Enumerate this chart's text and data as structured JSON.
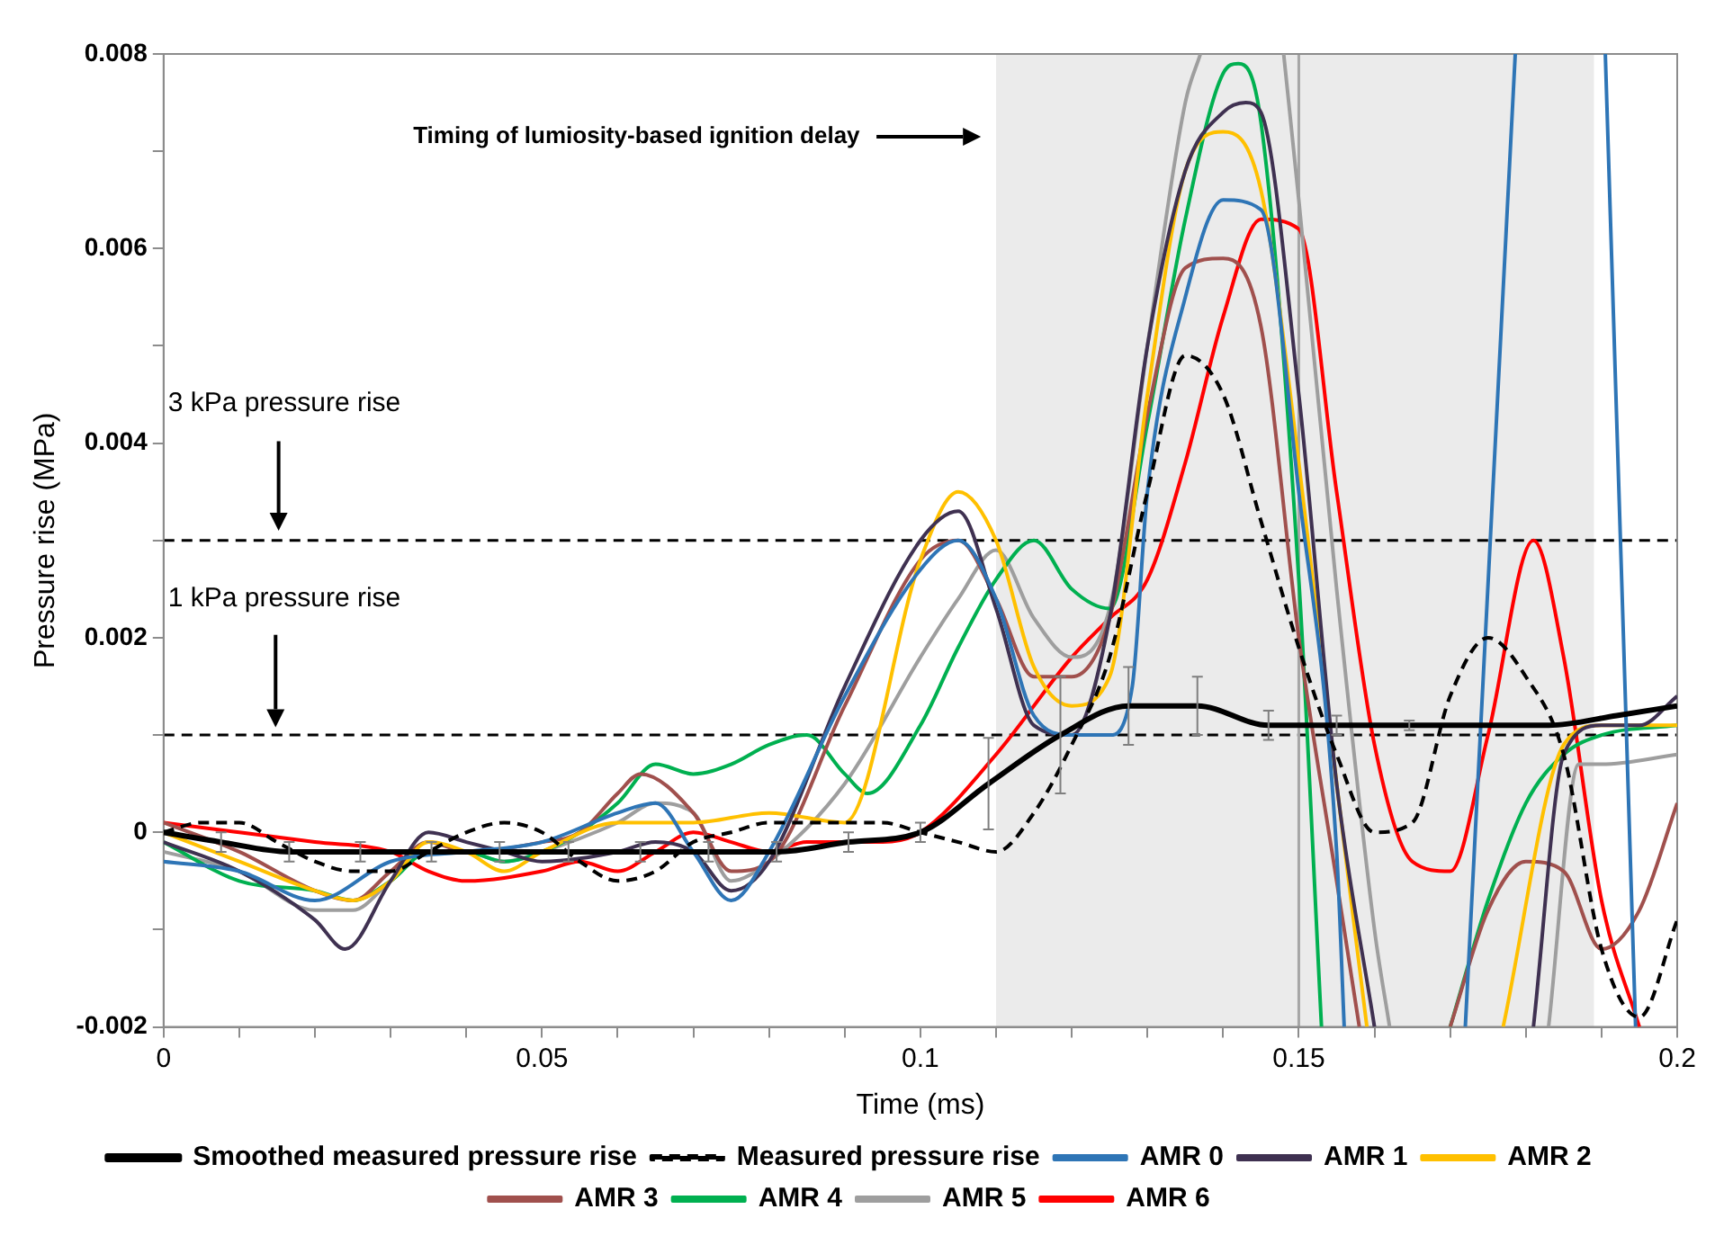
{
  "chart_data": {
    "type": "line",
    "xlabel": "Time (ms)",
    "ylabel": "Pressure rise (MPa)",
    "xlim": [
      0,
      0.2
    ],
    "ylim": [
      -0.002,
      0.008
    ],
    "xticks": [
      0,
      {
        "value": 0.01,
        "label": null
      },
      {
        "value": 0.02,
        "label": null
      },
      {
        "value": 0.03,
        "label": null
      },
      {
        "value": 0.04,
        "label": null
      },
      0.05,
      {
        "value": 0.06,
        "label": null
      },
      {
        "value": 0.07,
        "label": null
      },
      {
        "value": 0.08,
        "label": null
      },
      {
        "value": 0.09,
        "label": null
      },
      0.1,
      {
        "value": 0.11,
        "label": null
      },
      {
        "value": 0.12,
        "label": null
      },
      {
        "value": 0.13,
        "label": null
      },
      {
        "value": 0.14,
        "label": null
      },
      0.15,
      {
        "value": 0.16,
        "label": null
      },
      {
        "value": 0.17,
        "label": null
      },
      {
        "value": 0.18,
        "label": null
      },
      {
        "value": 0.19,
        "label": null
      },
      0.2
    ],
    "yticks": [
      -0.002,
      {
        "value": -0.001,
        "label": null
      },
      0,
      {
        "value": 0.001,
        "label": null
      },
      0.002,
      {
        "value": 0.003,
        "label": null
      },
      0.004,
      {
        "value": 0.005,
        "label": null
      },
      0.006,
      {
        "value": 0.007,
        "label": null
      },
      0.008
    ],
    "grid": false,
    "legend": "bottom",
    "marker": "none",
    "series": [
      {
        "name": "Smoothed measured pressure rise",
        "color": "#000000",
        "x": [
          0,
          0.0076,
          0.0166,
          0.026,
          0.0354,
          0.0444,
          0.0535,
          0.063,
          0.072,
          0.081,
          0.0905,
          0.1,
          0.109,
          0.1185,
          0.1275,
          0.1366,
          0.146,
          0.155,
          0.1646,
          0.174,
          0.183,
          0.192,
          0.2
        ],
        "values": [
          0,
          -0.0001,
          -0.0002,
          -0.0002,
          -0.0002,
          -0.0002,
          -0.0002,
          -0.0002,
          -0.0002,
          -0.0002,
          -0.0001,
          0,
          0.0005,
          0.001,
          0.0013,
          0.0013,
          0.0011,
          0.0011,
          0.0011,
          0.0011,
          0.0011,
          0.0012,
          0.0013
        ],
        "errors": [
          null,
          0.0001,
          0.0001,
          0.0001,
          0.0001,
          0.0001,
          0.0001,
          0.0001,
          0.0001,
          0.0001,
          0.0001,
          0.0001,
          0.00047,
          0.0006,
          0.0004,
          0.0003,
          0.00015,
          0.0001,
          5e-05,
          null,
          null,
          null,
          null
        ]
      },
      {
        "name": "Measured pressure rise",
        "color": "#000000",
        "line_style": "dashed",
        "x": [
          0,
          0.005,
          0.01,
          0.015,
          0.02,
          0.025,
          0.03,
          0.035,
          0.04,
          0.045,
          0.05,
          0.055,
          0.06,
          0.065,
          0.07,
          0.075,
          0.08,
          0.085,
          0.09,
          0.095,
          0.1,
          0.105,
          0.11,
          0.115,
          0.12,
          0.125,
          0.13,
          0.135,
          0.14,
          0.145,
          0.15,
          0.155,
          0.16,
          0.165,
          0.17,
          0.175,
          0.18,
          0.185,
          0.19,
          0.195,
          0.2
        ],
        "values": [
          0,
          0.0001,
          0.0001,
          -0.0001,
          -0.0003,
          -0.0004,
          -0.0004,
          -0.0002,
          0,
          0.0001,
          0,
          -0.0003,
          -0.0005,
          -0.0004,
          -0.0001,
          0,
          0.0001,
          0.0001,
          0.0001,
          0.0001,
          0,
          -0.0001,
          -0.0002,
          0.0002,
          0.0009,
          0.0018,
          0.0035,
          0.0049,
          0.0045,
          0.0032,
          0.0019,
          0.0008,
          0,
          0.0001,
          0.0014,
          0.002,
          0.0016,
          0.0008,
          -0.0012,
          -0.0019,
          -0.0009
        ]
      },
      {
        "name": "AMR 0",
        "color": "#2e75b6",
        "x": [
          0,
          0.01,
          0.02,
          0.03,
          0.04,
          0.05,
          0.06,
          0.065,
          0.07,
          0.075,
          0.08,
          0.09,
          0.1,
          0.105,
          0.11,
          0.115,
          0.12,
          0.125,
          0.128,
          0.13,
          0.135,
          0.14,
          0.145,
          0.15,
          0.155,
          0.156,
          0.163,
          0.172,
          0.1786,
          0.185,
          0.1905,
          0.1945
        ],
        "values": [
          -0.0003,
          -0.0004,
          -0.0007,
          -0.0003,
          -0.0002,
          -0.0001,
          0.0002,
          0.0003,
          -0.0002,
          -0.0007,
          -0.0002,
          0.0014,
          0.0027,
          0.003,
          0.0024,
          0.0012,
          0.001,
          0.001,
          0.0015,
          0.0035,
          0.0055,
          0.0065,
          0.0064,
          0.0035,
          -0.0002,
          -0.002,
          null,
          -0.002,
          0.008,
          null,
          0.008,
          -0.002
        ]
      },
      {
        "name": "AMR 1",
        "color": "#3f3151",
        "x": [
          0,
          0.01,
          0.02,
          0.024,
          0.03,
          0.035,
          0.04,
          0.045,
          0.05,
          0.06,
          0.065,
          0.07,
          0.075,
          0.08,
          0.09,
          0.1,
          0.105,
          0.11,
          0.115,
          0.12,
          0.125,
          0.13,
          0.135,
          0.14,
          0.143,
          0.145,
          0.15,
          0.155,
          0.16,
          0.17,
          0.181,
          0.185,
          0.19,
          0.195,
          0.2
        ],
        "values": [
          -0.0001,
          -0.0004,
          -0.0009,
          -0.0012,
          -0.0005,
          0,
          -0.0001,
          -0.0002,
          -0.0003,
          -0.0002,
          -0.0001,
          -0.0002,
          -0.0006,
          -0.0003,
          0.0015,
          0.003,
          0.0033,
          0.0023,
          0.0011,
          0.001,
          0.0022,
          0.005,
          0.0068,
          0.0074,
          0.0075,
          0.0074,
          0.0045,
          0.0005,
          -0.002,
          null,
          -0.002,
          0.0008,
          0.0011,
          0.0011,
          0.0014
        ]
      },
      {
        "name": "AMR 2",
        "color": "#ffc000",
        "x": [
          0,
          0.01,
          0.02,
          0.025,
          0.03,
          0.035,
          0.04,
          0.045,
          0.05,
          0.06,
          0.07,
          0.08,
          0.09,
          0.1,
          0.105,
          0.11,
          0.115,
          0.12,
          0.125,
          0.13,
          0.135,
          0.14,
          0.145,
          0.15,
          0.155,
          0.159,
          0.168,
          0.177,
          0.185,
          0.19,
          0.2
        ],
        "values": [
          0,
          -0.0003,
          -0.0006,
          -0.0007,
          -0.0005,
          -0.0001,
          -0.0002,
          -0.0004,
          -0.0002,
          0.0001,
          0.0001,
          0.0002,
          0.0001,
          0.0028,
          0.0035,
          0.003,
          0.0017,
          0.0013,
          0.0016,
          0.0045,
          0.0068,
          0.0072,
          0.0066,
          0.0038,
          0.0005,
          -0.002,
          null,
          -0.002,
          0.0009,
          0.0011,
          0.0011
        ]
      },
      {
        "name": "AMR 3",
        "color": "#a0504d",
        "x": [
          0,
          0.01,
          0.02,
          0.025,
          0.03,
          0.035,
          0.04,
          0.05,
          0.055,
          0.06,
          0.063,
          0.07,
          0.075,
          0.08,
          0.09,
          0.1,
          0.105,
          0.11,
          0.115,
          0.12,
          0.125,
          0.13,
          0.135,
          0.14,
          0.145,
          0.15,
          0.155,
          0.158,
          0.164,
          0.17,
          0.175,
          0.18,
          0.185,
          0.19,
          0.195,
          0.2
        ],
        "values": [
          0.0001,
          -0.0002,
          -0.0006,
          -0.0007,
          -0.0004,
          -0.0001,
          -0.0002,
          -0.0001,
          0,
          0.0004,
          0.0006,
          0.0002,
          -0.0004,
          -0.0003,
          0.0013,
          0.0028,
          0.003,
          0.0024,
          0.0016,
          0.0016,
          0.0022,
          0.0043,
          0.0058,
          0.0059,
          0.0052,
          0.002,
          -0.0005,
          -0.002,
          null,
          -0.002,
          -0.0008,
          -0.0003,
          -0.0004,
          -0.0012,
          -0.0008,
          0.0003
        ]
      },
      {
        "name": "AMR 4",
        "color": "#00b050",
        "x": [
          0,
          0.01,
          0.02,
          0.025,
          0.03,
          0.035,
          0.04,
          0.045,
          0.05,
          0.055,
          0.06,
          0.065,
          0.07,
          0.075,
          0.08,
          0.085,
          0.09,
          0.093,
          0.1,
          0.105,
          0.11,
          0.115,
          0.12,
          0.125,
          0.13,
          0.135,
          0.14,
          0.142,
          0.145,
          0.15,
          0.153,
          0.16,
          0.17,
          0.175,
          0.18,
          0.185,
          0.19,
          0.2
        ],
        "values": [
          -0.0001,
          -0.0005,
          -0.0006,
          -0.0007,
          -0.0005,
          -0.0002,
          -0.0002,
          -0.0003,
          -0.0002,
          0,
          0.0003,
          0.0007,
          0.0006,
          0.0007,
          0.0009,
          0.001,
          0.0006,
          0.0004,
          0.0011,
          0.0019,
          0.0026,
          0.003,
          0.0025,
          0.0023,
          0.0042,
          0.0063,
          0.0078,
          0.0079,
          0.0073,
          0.0026,
          -0.002,
          null,
          -0.002,
          -0.0007,
          0.0003,
          0.0008,
          0.001,
          0.0011
        ]
      },
      {
        "name": "AMR 5",
        "color": "#9e9e9e",
        "x": [
          0,
          0.01,
          0.02,
          0.025,
          0.03,
          0.035,
          0.04,
          0.045,
          0.05,
          0.06,
          0.065,
          0.07,
          0.075,
          0.08,
          0.09,
          0.1,
          0.105,
          0.11,
          0.115,
          0.12,
          0.125,
          0.13,
          0.135,
          0.137,
          0.142,
          0.148,
          0.15,
          0.155,
          0.16,
          0.162,
          0.172,
          0.183,
          0.187,
          0.19,
          0.2
        ],
        "values": [
          -0.0002,
          -0.0004,
          -0.0008,
          -0.0008,
          -0.0005,
          -0.0002,
          -0.0002,
          -0.0003,
          -0.0002,
          0.0001,
          0.0003,
          0.0002,
          -0.0005,
          -0.0003,
          0.0005,
          0.0018,
          0.0024,
          0.0029,
          0.0022,
          0.0018,
          0.0023,
          0.005,
          0.0075,
          0.008,
          null,
          0.008,
          0.0065,
          0.0025,
          -0.001,
          -0.002,
          null,
          -0.002,
          0.0007,
          0.0007,
          0.0008
        ]
      },
      {
        "name": "AMR 6",
        "color": "#ff0000",
        "x": [
          0,
          0.01,
          0.02,
          0.03,
          0.035,
          0.04,
          0.05,
          0.055,
          0.06,
          0.065,
          0.07,
          0.075,
          0.08,
          0.085,
          0.09,
          0.095,
          0.1,
          0.11,
          0.12,
          0.125,
          0.13,
          0.135,
          0.14,
          0.145,
          0.15,
          0.155,
          0.16,
          0.165,
          0.17,
          0.175,
          0.181,
          0.185,
          0.19,
          0.195
        ],
        "values": [
          0.0001,
          0,
          -0.0001,
          -0.0002,
          -0.0004,
          -0.0005,
          -0.0004,
          -0.0003,
          -0.0004,
          -0.0002,
          0,
          -0.0001,
          -0.0002,
          -0.0001,
          -0.0001,
          -0.0001,
          0,
          0.0008,
          0.0018,
          0.0022,
          0.0026,
          0.0038,
          0.0053,
          0.0063,
          0.0062,
          0.0035,
          0.0009,
          -0.0003,
          -0.0004,
          0.001,
          0.003,
          0.0018,
          -0.0007,
          -0.002
        ]
      }
    ],
    "ref_lines": [
      {
        "axis": "y",
        "value": 0.003,
        "color": "#000000",
        "line_style": "dashed"
      },
      {
        "axis": "y",
        "value": 0.001,
        "color": "#000000",
        "line_style": "dashed"
      },
      {
        "axis": "x",
        "value": 0.15,
        "color": "#a6a6a6"
      }
    ],
    "bands": [
      {
        "axis": "x",
        "from": 0.11,
        "to": 0.189,
        "color": "#ebebeb"
      }
    ],
    "annotations": [
      "Timing of lumiosity-based ignition delay",
      "3 kPa pressure rise",
      "1 kPa pressure rise"
    ]
  }
}
